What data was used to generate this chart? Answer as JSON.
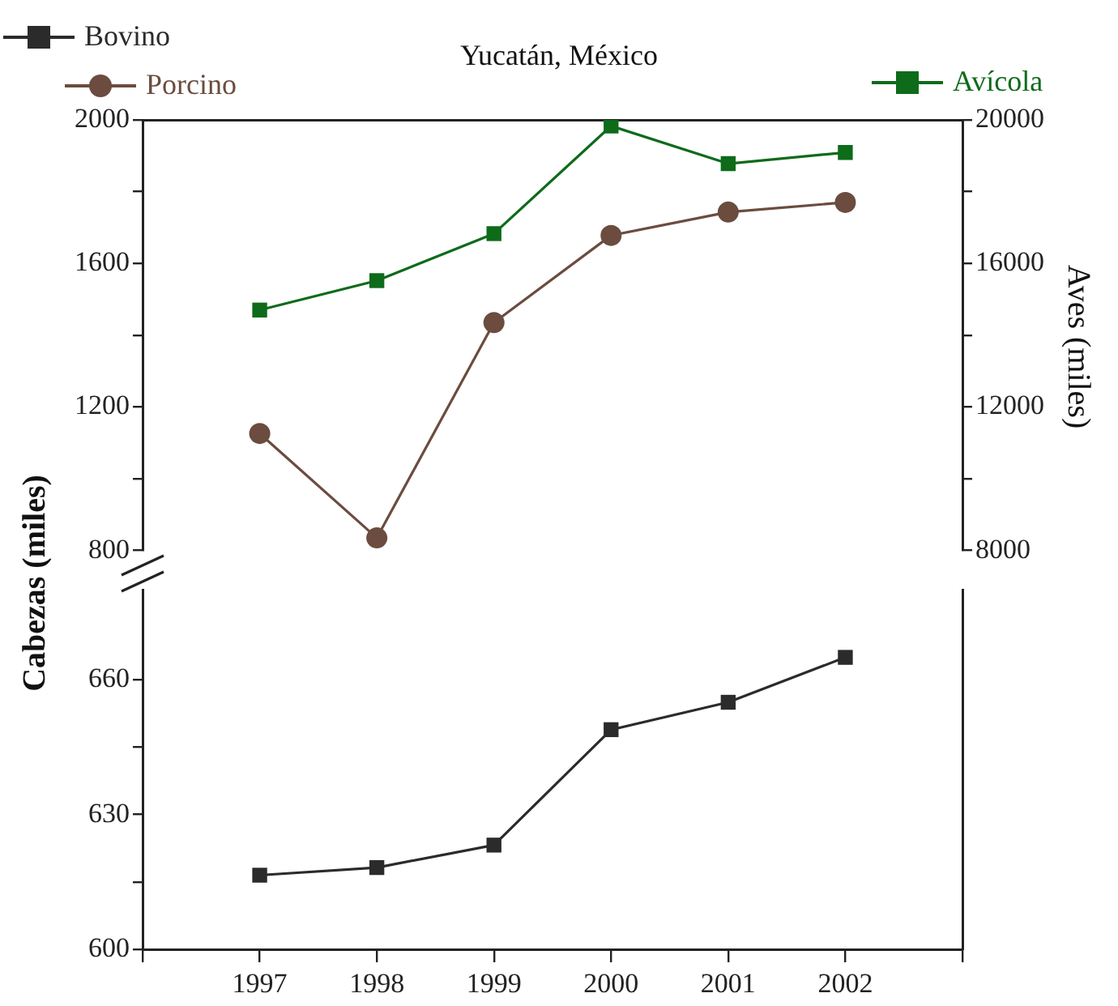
{
  "chart_data": [
    {
      "type": "line",
      "title": "Yucatán, México",
      "y2label": "Aves (miles)",
      "x": [
        1997,
        1998,
        1999,
        2000,
        2001,
        2002
      ],
      "xlim": [
        1996,
        2003
      ],
      "ylim": [
        800,
        2000
      ],
      "yticks": [
        800,
        {
          "value": 1000,
          "label": null
        },
        1200,
        {
          "value": 1400,
          "label": null
        },
        1600,
        {
          "value": 1800,
          "label": null
        },
        2000
      ],
      "y2lim": [
        8000,
        20000
      ],
      "y2ticks": [
        8000,
        {
          "value": 10000,
          "label": null
        },
        12000,
        {
          "value": 14000,
          "label": null
        },
        16000,
        {
          "value": 18000,
          "label": null
        },
        20000
      ],
      "tick_labels": "y",
      "grid": false,
      "legend": "top",
      "line_style": "solid",
      "series": [
        {
          "name": "Porcino",
          "color": "#6b4c3f",
          "marker": "circle",
          "values": [
            1126,
            835,
            1435,
            1678,
            1743,
            1770
          ]
        },
        {
          "name": "Avícola",
          "color": "#0d6b1a",
          "marker": "square",
          "axis": "y2",
          "values": [
            14700,
            15520,
            16830,
            19830,
            18780,
            19090
          ]
        }
      ]
    },
    {
      "type": "line",
      "ylabel": "Cabezas (miles)",
      "x": [
        1997,
        1998,
        1999,
        2000,
        2001,
        2002
      ],
      "xlim": [
        1996,
        2003
      ],
      "xticks": [
        {
          "value": 1996,
          "label": null
        },
        1997,
        1998,
        1999,
        2000,
        2001,
        2002,
        {
          "value": 2003,
          "label": null
        }
      ],
      "ylim": [
        600,
        680
      ],
      "yticks": [
        600,
        {
          "value": 615,
          "label": null
        },
        630,
        {
          "value": 645,
          "label": null
        },
        660
      ],
      "grid": false,
      "legend": "top left",
      "line_style": "solid",
      "series": [
        {
          "name": "Bovino",
          "color": "#2b2b2b",
          "marker": "square",
          "values": [
            616.5,
            618.2,
            623.2,
            648.9,
            655,
            665
          ]
        }
      ]
    }
  ]
}
